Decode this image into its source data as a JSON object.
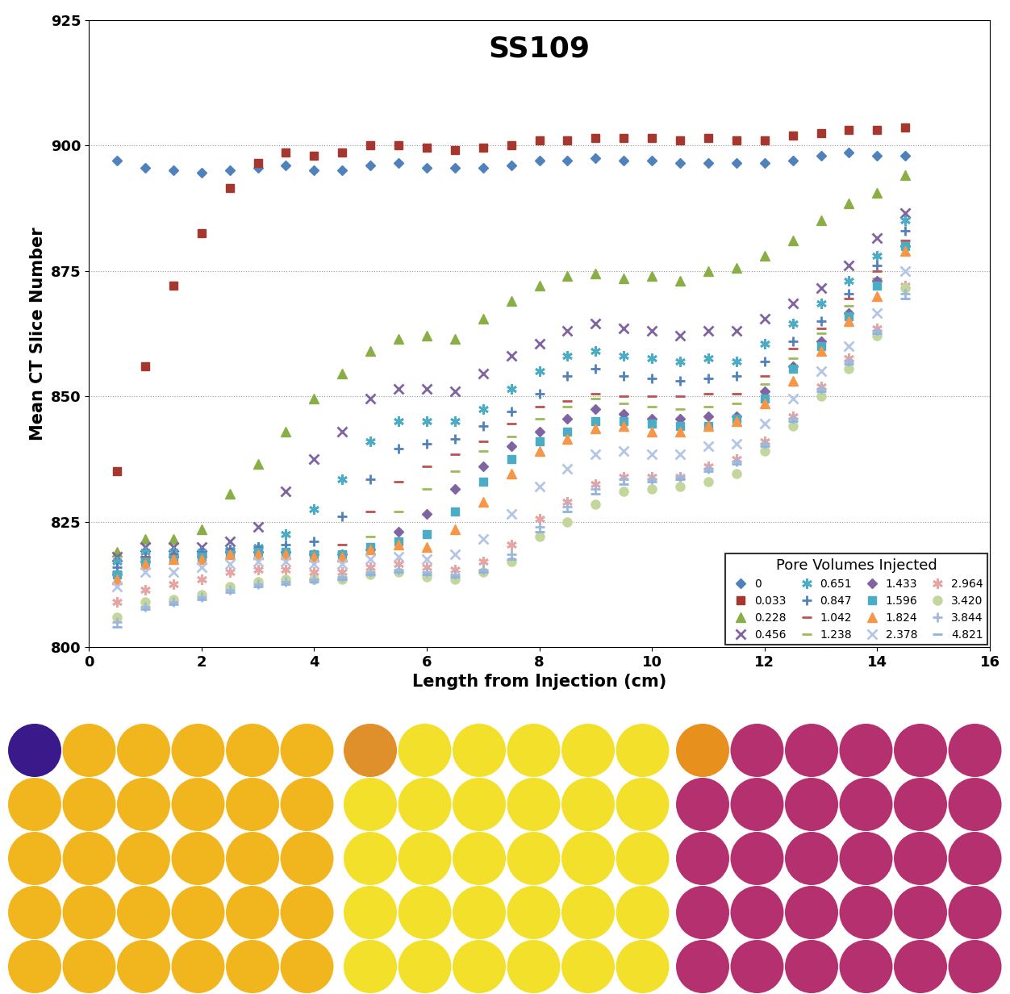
{
  "chart_data": {
    "type": "scatter",
    "title": "SS109",
    "x_label": "Length from Injection (cm)",
    "y_label": "Mean CT Slice Number",
    "x": [
      0.5,
      1.0,
      1.5,
      2.0,
      2.5,
      3.0,
      3.5,
      4.0,
      4.5,
      5.0,
      5.5,
      6.0,
      6.5,
      7.0,
      7.5,
      8.0,
      8.5,
      9.0,
      9.5,
      10.0,
      10.5,
      11.0,
      11.5,
      12.0,
      12.5,
      13.0,
      13.5,
      14.0,
      14.5
    ],
    "xlim": [
      0,
      16
    ],
    "xticks": [
      0,
      2,
      4,
      6,
      8,
      10,
      12,
      14,
      16
    ],
    "ylim": [
      800,
      925
    ],
    "yticks": [
      800,
      825,
      850,
      875,
      900,
      925
    ],
    "grid": true,
    "legend": "lower right",
    "legend_title": "Pore Volumes Injected",
    "line_style": "none",
    "series": [
      {
        "name": "0",
        "color": "#4f81bd",
        "marker": "diamond",
        "values": [
          897,
          895.5,
          895,
          894.5,
          895,
          895.5,
          896,
          895,
          895,
          896,
          896.5,
          895.5,
          895.5,
          895.5,
          896,
          897,
          897,
          897.5,
          897,
          897,
          896.5,
          896.5,
          896.5,
          896.5,
          897,
          898,
          898.5,
          898,
          898
        ]
      },
      {
        "name": "0.033",
        "color": "#a5372f",
        "marker": "square",
        "values": [
          835,
          856,
          872,
          882.5,
          891.5,
          896.5,
          898.5,
          898,
          898.5,
          900,
          900,
          899.5,
          899,
          899.5,
          900,
          901,
          901,
          901.5,
          901.5,
          901.5,
          901,
          901.5,
          901,
          901,
          902,
          902.5,
          903,
          903,
          903.5
        ]
      },
      {
        "name": "0.228",
        "color": "#8aae46",
        "marker": "triangle",
        "values": [
          819,
          821.5,
          821.5,
          823.5,
          830.5,
          836.5,
          843,
          849.5,
          854.5,
          859,
          861.5,
          862,
          861.5,
          865.5,
          869,
          872,
          874,
          874.5,
          873.5,
          874,
          873,
          875,
          875.5,
          878,
          881,
          885,
          888.5,
          890.5,
          894
        ]
      },
      {
        "name": "0.456",
        "color": "#8064a2",
        "marker": "x",
        "values": [
          818,
          820,
          820,
          820,
          821,
          824,
          831,
          837.5,
          843,
          849.5,
          851.5,
          851.5,
          851,
          854.5,
          858,
          860.5,
          863,
          864.5,
          863.5,
          863,
          862,
          863,
          863,
          865.5,
          868.5,
          871.5,
          876,
          881.5,
          886.5
        ]
      },
      {
        "name": "0.651",
        "color": "#4bacc6",
        "marker": "asterisk",
        "values": [
          817,
          819,
          819,
          819,
          819.5,
          820,
          822.5,
          827.5,
          833.5,
          841,
          845,
          845,
          845,
          847.5,
          851.5,
          855,
          858,
          859,
          858,
          857.5,
          857,
          857.5,
          857,
          860.5,
          864.5,
          868.5,
          873,
          878,
          885
        ]
      },
      {
        "name": "0.847",
        "color": "#4f81bd",
        "marker": "plus",
        "values": [
          816,
          818,
          818.5,
          819,
          819.5,
          820,
          820.5,
          821,
          826,
          833.5,
          839.5,
          840.5,
          841.5,
          844,
          847,
          850.5,
          854,
          855.5,
          854,
          853.5,
          853,
          853.5,
          854,
          857,
          861,
          865,
          870.5,
          876,
          883
        ]
      },
      {
        "name": "1.042",
        "color": "#c0504d",
        "marker": "dash",
        "values": [
          815,
          818,
          818,
          818.5,
          819,
          819,
          819,
          819,
          820.5,
          827,
          833,
          836,
          838.5,
          841,
          844.5,
          848,
          849,
          850.5,
          850,
          850,
          850,
          850.5,
          850.5,
          854,
          859.5,
          863.5,
          869.5,
          875,
          881
        ]
      },
      {
        "name": "1.238",
        "color": "#9bbb59",
        "marker": "dash",
        "values": [
          815,
          817.5,
          818,
          818.5,
          819,
          819,
          819,
          819,
          819,
          822,
          827,
          831.5,
          835,
          839,
          842,
          845.5,
          848,
          849.5,
          848.5,
          848,
          847.5,
          848,
          848.5,
          852.5,
          857.5,
          862.5,
          868,
          873.5,
          880
        ]
      },
      {
        "name": "1.433",
        "color": "#8064a2",
        "marker": "diamond",
        "values": [
          814.5,
          817,
          818,
          818,
          819,
          819,
          819,
          818.5,
          818.5,
          819.5,
          823,
          826.5,
          831.5,
          836,
          840,
          843,
          845.5,
          847.5,
          846.5,
          845.5,
          845.5,
          846,
          846,
          851,
          856,
          861,
          866.5,
          873,
          880
        ]
      },
      {
        "name": "1.596",
        "color": "#4bacc6",
        "marker": "square",
        "values": [
          814.5,
          817,
          817.5,
          818,
          818.5,
          819,
          819,
          818.5,
          818.5,
          820,
          821,
          822.5,
          827,
          833,
          837.5,
          841,
          843,
          845,
          845,
          844.5,
          844,
          844,
          845.5,
          849.5,
          855.5,
          860,
          866,
          872,
          880
        ]
      },
      {
        "name": "1.824",
        "color": "#f79646",
        "marker": "triangle",
        "values": [
          813.5,
          816.5,
          817.5,
          817.5,
          818.5,
          818.5,
          818.5,
          818,
          818,
          819.5,
          820.5,
          820,
          823.5,
          829,
          834.5,
          839,
          841.5,
          843.5,
          844,
          843,
          843,
          844,
          845,
          848.5,
          853,
          859,
          865,
          870,
          879
        ]
      },
      {
        "name": "2.378",
        "color": "#b3c6e7",
        "marker": "x",
        "values": [
          812,
          815,
          815,
          816,
          816.5,
          817,
          817,
          816.5,
          816.5,
          817.5,
          818,
          817.5,
          818.5,
          821.5,
          826.5,
          832,
          835.5,
          838.5,
          839,
          838.5,
          838.5,
          840,
          840.5,
          844.5,
          849.5,
          855,
          860,
          866.5,
          875
        ]
      },
      {
        "name": "2.964",
        "color": "#e6a5a3",
        "marker": "asterisk",
        "values": [
          809,
          811.5,
          812.5,
          813.5,
          815,
          815.5,
          815.5,
          815,
          815,
          816,
          816.5,
          816,
          815.5,
          817,
          820.5,
          825.5,
          829,
          832.5,
          834,
          834,
          834,
          836,
          837.5,
          841,
          846,
          852,
          857.5,
          863.5,
          872
        ]
      },
      {
        "name": "3.420",
        "color": "#c3d69b",
        "marker": "circle",
        "values": [
          806,
          809,
          809.5,
          810.5,
          812,
          813,
          813.5,
          813.5,
          813.5,
          814.5,
          815,
          814,
          813.5,
          815,
          817,
          822,
          825,
          828.5,
          831,
          831.5,
          832,
          833,
          834.5,
          839,
          844,
          850,
          855.5,
          862,
          871.5
        ]
      },
      {
        "name": "3.844",
        "color": "#9fb8d9",
        "marker": "plus",
        "values": [
          805,
          808,
          809,
          810,
          811.5,
          812.5,
          813,
          813.5,
          814,
          815,
          815.5,
          815,
          814.5,
          815.5,
          818.5,
          824,
          828,
          831.5,
          833.5,
          833.5,
          834,
          835.5,
          837,
          840.5,
          845.5,
          851.5,
          857,
          863,
          870.5
        ]
      },
      {
        "name": "4.821",
        "color": "#8db3e2",
        "marker": "dash",
        "values": [
          804,
          807.5,
          808.5,
          809.5,
          811,
          812,
          812.5,
          813,
          813.5,
          814.5,
          815,
          814.5,
          814,
          815,
          817.5,
          823,
          827,
          830.5,
          832.5,
          833,
          833.5,
          835,
          836.5,
          840,
          845,
          851,
          856.5,
          862.5,
          869.5
        ]
      }
    ]
  }
}
